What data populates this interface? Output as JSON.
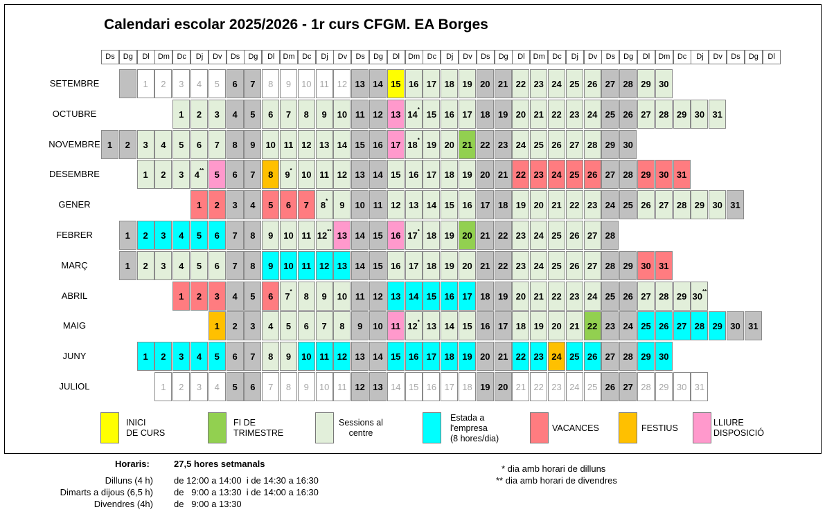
{
  "title": "Calendari escolar 2025/2026 - 1r curs CFGM. EA Borges",
  "weekdays": [
    "Ds",
    "Dg",
    "Dl",
    "Dm",
    "Dc",
    "Dj",
    "Dv",
    "Ds",
    "Dg",
    "Dl",
    "Dm",
    "Dc",
    "Dj",
    "Dv",
    "Ds",
    "Dg",
    "Dl",
    "Dm",
    "Dc",
    "Dj",
    "Dv",
    "Ds",
    "Dg",
    "Dl",
    "Dm",
    "Dc",
    "Dj",
    "Dv",
    "Ds",
    "Dg",
    "Dl",
    "Dm",
    "Dc",
    "Dj",
    "Dv",
    "Ds",
    "Dg",
    "Dl"
  ],
  "colors": {
    "weekend": "#c0c0c0",
    "session": "#e2efda",
    "start": "#ffff00",
    "term_end": "#92d050",
    "internship": "#00ffff",
    "holiday": "#ff7c80",
    "festive": "#ffc000",
    "free": "#ff99cc"
  },
  "months": [
    {
      "name": "SETEMBRE",
      "start": 2,
      "blank_before": true,
      "types": "wwwwwggwwwwwggyssssggsssssggss",
      "marks": {}
    },
    {
      "name": "OCTUBRE",
      "start": 4,
      "types": "sssggsssssgglssssggsssssggsssss",
      "marks": {
        "14": "*"
      }
    },
    {
      "name": "NOVEMBRE",
      "start": 0,
      "types": "ggsssssggsssssgglssstggsssssgg",
      "marks": {
        "18": "*"
      }
    },
    {
      "name": "DESEMBRE",
      "start": 2,
      "types": "sssslggfssssggsssssggvvvvvggvvv",
      "marks": {
        "4": "**",
        "9": "*"
      }
    },
    {
      "name": "GENER",
      "start": 5,
      "types": "vvggvvvssggsssssggsssssggsssssg",
      "marks": {
        "8": "*"
      }
    },
    {
      "name": "FEBRER",
      "start": 1,
      "types": "geeeeeggsssslgglssstggsssssg",
      "marks": {
        "12": "**",
        "17": "*"
      }
    },
    {
      "name": "MARÇ",
      "start": 1,
      "types": "gsssssggeeeeeggsssssggsssssggvv",
      "marks": {}
    },
    {
      "name": "ABRIL",
      "start": 4,
      "types": "vvvggvssssggeeeeeggsssssggssss",
      "marks": {
        "7": "*",
        "30": "**"
      }
    },
    {
      "name": "MAIG",
      "start": 6,
      "types": "fggsssssgglssssggsssstggeeeeegg",
      "marks": {
        "12": "*"
      }
    },
    {
      "name": "JUNY",
      "start": 2,
      "types": "eeeeeggsseeeggeeeeeggeefeeggee",
      "marks": {}
    },
    {
      "name": "JULIOL",
      "start": 3,
      "types": "wwwwggwwwwwggwwwwwggwwwwwggwwww",
      "marks": {}
    }
  ],
  "legend": [
    {
      "type": "y",
      "lines": [
        "INICI",
        "DE CURS"
      ]
    },
    {
      "type": "t",
      "lines": [
        "FI DE",
        "TRIMESTRE"
      ]
    },
    {
      "type": "s",
      "lines": [
        "Sessions al",
        "centre"
      ]
    },
    {
      "type": "e",
      "lines": [
        "Estada a",
        "l'empresa",
        "(8 hores/dia)"
      ]
    },
    {
      "type": "v",
      "lines": [
        "VACANCES"
      ]
    },
    {
      "type": "f",
      "lines": [
        "FESTIUS"
      ]
    },
    {
      "type": "l",
      "lines": [
        "LLIURE",
        "DISPOSICIÓ"
      ]
    }
  ],
  "schedule": {
    "label": "Horaris:",
    "total": "27,5 hores setmanals",
    "rows": [
      {
        "day": "Dilluns (4 h)",
        "hours": "de 12:00 a 14:00  i de 14:30 a 16:30"
      },
      {
        "day": "Dimarts a dijous (6,5 h)",
        "hours": "de   9:00 a 13:30  i de 14:00 a 16:30"
      },
      {
        "day": "Divendres (4h)",
        "hours": "de   9:00 a 13:30"
      }
    ]
  },
  "notes": [
    "* dia amb horari de dilluns",
    "** dia amb horari de divendres"
  ]
}
